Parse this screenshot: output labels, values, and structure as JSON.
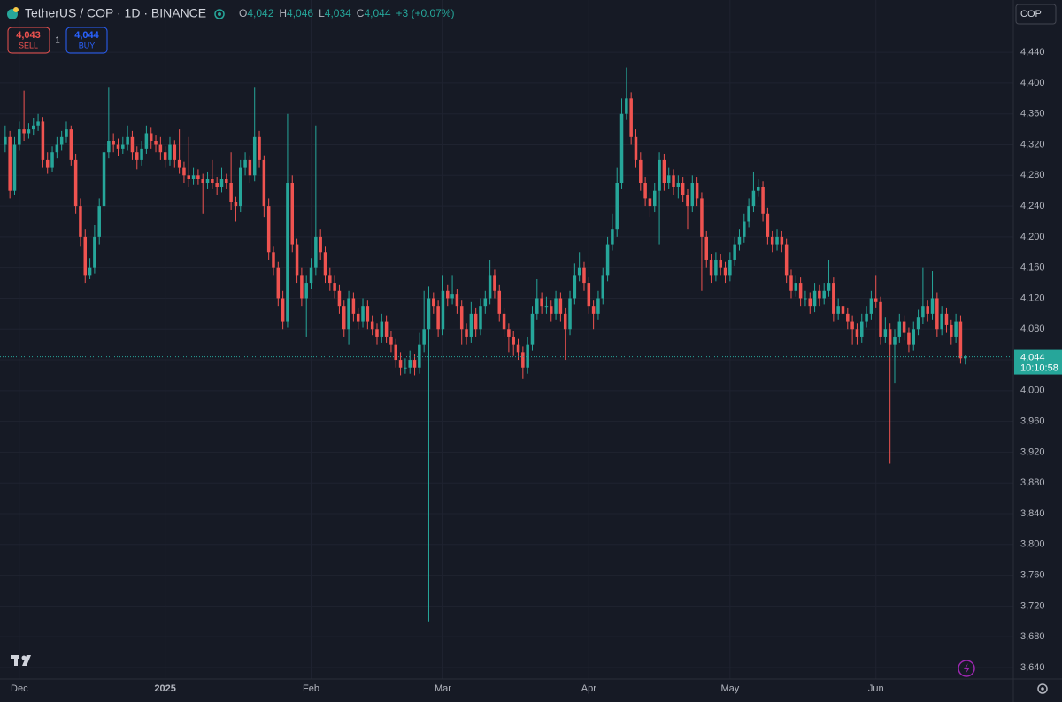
{
  "header": {
    "symbol": "TetherUS / COP · 1D · BINANCE",
    "ohlc": [
      {
        "label": "O",
        "value": "4,042"
      },
      {
        "label": "H",
        "value": "4,046"
      },
      {
        "label": "L",
        "value": "4,034"
      },
      {
        "label": "C",
        "value": "4,044"
      }
    ],
    "change": "+3 (+0.07%)",
    "sell_price": "4,043",
    "sell_label": "SELL",
    "quantity": "1",
    "buy_price": "4,044",
    "buy_label": "BUY",
    "currency": "COP"
  },
  "chart_data": {
    "type": "candlestick",
    "up_color": "#26a69a",
    "down_color": "#ef5350",
    "grid": true,
    "xlim": [
      -1.1,
      214.2
    ],
    "xticks": [
      {
        "value": 3,
        "label": "Dec"
      },
      {
        "value": 34,
        "label": "2025"
      },
      {
        "value": 65,
        "label": "Feb"
      },
      {
        "value": 93,
        "label": "Mar"
      },
      {
        "value": 124,
        "label": "Apr"
      },
      {
        "value": 154,
        "label": "May"
      },
      {
        "value": 185,
        "label": "Jun"
      }
    ],
    "ylim": [
      3625,
      4508
    ],
    "yticks": [
      {
        "value": 3640,
        "label": "3,640"
      },
      {
        "value": 3680,
        "label": "3,680"
      },
      {
        "value": 3720,
        "label": "3,720"
      },
      {
        "value": 3760,
        "label": "3,760"
      },
      {
        "value": 3800,
        "label": "3,800"
      },
      {
        "value": 3840,
        "label": "3,840"
      },
      {
        "value": 3880,
        "label": "3,880"
      },
      {
        "value": 3920,
        "label": "3,920"
      },
      {
        "value": 3960,
        "label": "3,960"
      },
      {
        "value": 4000,
        "label": "4,000"
      },
      {
        "value": 4040,
        "label": "4,040"
      },
      {
        "value": 4080,
        "label": "4,080"
      },
      {
        "value": 4120,
        "label": "4,120"
      },
      {
        "value": 4160,
        "label": "4,160"
      },
      {
        "value": 4200,
        "label": "4,200"
      },
      {
        "value": 4240,
        "label": "4,240"
      },
      {
        "value": 4280,
        "label": "4,280"
      },
      {
        "value": 4320,
        "label": "4,320"
      },
      {
        "value": 4360,
        "label": "4,360"
      },
      {
        "value": 4400,
        "label": "4,400"
      },
      {
        "value": 4440,
        "label": "4,440"
      }
    ],
    "last_price": {
      "value": 4044,
      "label": "4,044"
    },
    "countdown": "10:10:58",
    "candles": [
      [
        4320,
        4345,
        4310,
        4330
      ],
      [
        4330,
        4338,
        4250,
        4260
      ],
      [
        4260,
        4330,
        4255,
        4320
      ],
      [
        4320,
        4350,
        4312,
        4340
      ],
      [
        4340,
        4390,
        4325,
        4335
      ],
      [
        4335,
        4348,
        4328,
        4340
      ],
      [
        4340,
        4355,
        4332,
        4345
      ],
      [
        4345,
        4360,
        4338,
        4350
      ],
      [
        4350,
        4356,
        4290,
        4300
      ],
      [
        4300,
        4310,
        4282,
        4290
      ],
      [
        4290,
        4318,
        4285,
        4310
      ],
      [
        4310,
        4330,
        4302,
        4320
      ],
      [
        4320,
        4338,
        4312,
        4330
      ],
      [
        4330,
        4350,
        4322,
        4340
      ],
      [
        4340,
        4345,
        4292,
        4300
      ],
      [
        4300,
        4308,
        4230,
        4240
      ],
      [
        4240,
        4250,
        4188,
        4200
      ],
      [
        4200,
        4210,
        4140,
        4150
      ],
      [
        4150,
        4172,
        4145,
        4160
      ],
      [
        4160,
        4215,
        4152,
        4200
      ],
      [
        4200,
        4250,
        4190,
        4240
      ],
      [
        4240,
        4320,
        4232,
        4310
      ],
      [
        4310,
        4395,
        4302,
        4325
      ],
      [
        4325,
        4335,
        4310,
        4320
      ],
      [
        4320,
        4328,
        4305,
        4315
      ],
      [
        4315,
        4330,
        4308,
        4320
      ],
      [
        4320,
        4345,
        4312,
        4330
      ],
      [
        4330,
        4338,
        4300,
        4310
      ],
      [
        4310,
        4318,
        4288,
        4300
      ],
      [
        4300,
        4325,
        4292,
        4315
      ],
      [
        4315,
        4345,
        4308,
        4335
      ],
      [
        4335,
        4342,
        4315,
        4325
      ],
      [
        4325,
        4332,
        4310,
        4320
      ],
      [
        4320,
        4330,
        4300,
        4310
      ],
      [
        4310,
        4318,
        4290,
        4300
      ],
      [
        4300,
        4330,
        4292,
        4320
      ],
      [
        4320,
        4326,
        4290,
        4300
      ],
      [
        4300,
        4340,
        4282,
        4290
      ],
      [
        4290,
        4298,
        4270,
        4280
      ],
      [
        4280,
        4330,
        4265,
        4275
      ],
      [
        4275,
        4290,
        4268,
        4280
      ],
      [
        4280,
        4288,
        4268,
        4275
      ],
      [
        4275,
        4282,
        4230,
        4270
      ],
      [
        4270,
        4285,
        4262,
        4275
      ],
      [
        4275,
        4300,
        4262,
        4270
      ],
      [
        4270,
        4278,
        4255,
        4265
      ],
      [
        4265,
        4290,
        4258,
        4275
      ],
      [
        4275,
        4282,
        4262,
        4270
      ],
      [
        4270,
        4310,
        4235,
        4245
      ],
      [
        4245,
        4252,
        4220,
        4240
      ],
      [
        4240,
        4300,
        4232,
        4290
      ],
      [
        4290,
        4310,
        4280,
        4300
      ],
      [
        4300,
        4306,
        4270,
        4280
      ],
      [
        4280,
        4395,
        4272,
        4330
      ],
      [
        4330,
        4338,
        4290,
        4300
      ],
      [
        4300,
        4306,
        4225,
        4240
      ],
      [
        4240,
        4250,
        4170,
        4180
      ],
      [
        4180,
        4188,
        4150,
        4160
      ],
      [
        4160,
        4168,
        4110,
        4120
      ],
      [
        4120,
        4130,
        4080,
        4090
      ],
      [
        4090,
        4360,
        4082,
        4270
      ],
      [
        4270,
        4280,
        4180,
        4190
      ],
      [
        4190,
        4198,
        4140,
        4150
      ],
      [
        4150,
        4160,
        4110,
        4120
      ],
      [
        4120,
        4150,
        4070,
        4140
      ],
      [
        4140,
        4172,
        4132,
        4160
      ],
      [
        4160,
        4345,
        4150,
        4200
      ],
      [
        4200,
        4210,
        4170,
        4180
      ],
      [
        4180,
        4188,
        4140,
        4150
      ],
      [
        4150,
        4160,
        4130,
        4140
      ],
      [
        4140,
        4150,
        4120,
        4130
      ],
      [
        4130,
        4138,
        4100,
        4110
      ],
      [
        4110,
        4118,
        4070,
        4080
      ],
      [
        4080,
        4130,
        4060,
        4120
      ],
      [
        4120,
        4128,
        4090,
        4100
      ],
      [
        4100,
        4108,
        4080,
        4090
      ],
      [
        4090,
        4120,
        4082,
        4110
      ],
      [
        4110,
        4118,
        4080,
        4090
      ],
      [
        4090,
        4098,
        4072,
        4080
      ],
      [
        4080,
        4088,
        4060,
        4070
      ],
      [
        4070,
        4100,
        4062,
        4090
      ],
      [
        4090,
        4098,
        4062,
        4070
      ],
      [
        4070,
        4078,
        4050,
        4060
      ],
      [
        4060,
        4068,
        4030,
        4040
      ],
      [
        4040,
        4050,
        4020,
        4030
      ],
      [
        4030,
        4042,
        4022,
        4030
      ],
      [
        4030,
        4052,
        4022,
        4040
      ],
      [
        4040,
        4048,
        4020,
        4030
      ],
      [
        4030,
        4075,
        4022,
        4060
      ],
      [
        4060,
        4130,
        4050,
        4080
      ],
      [
        4080,
        4135,
        3700,
        4120
      ],
      [
        4120,
        4128,
        4100,
        4110
      ],
      [
        4110,
        4118,
        4070,
        4080
      ],
      [
        4080,
        4150,
        4072,
        4130
      ],
      [
        4130,
        4138,
        4110,
        4120
      ],
      [
        4120,
        4150,
        4112,
        4125
      ],
      [
        4125,
        4132,
        4100,
        4110
      ],
      [
        4110,
        4118,
        4060,
        4080
      ],
      [
        4080,
        4088,
        4060,
        4070
      ],
      [
        4070,
        4115,
        4062,
        4100
      ],
      [
        4100,
        4108,
        4070,
        4080
      ],
      [
        4080,
        4120,
        4072,
        4110
      ],
      [
        4110,
        4130,
        4100,
        4120
      ],
      [
        4120,
        4170,
        4112,
        4150
      ],
      [
        4150,
        4158,
        4120,
        4130
      ],
      [
        4130,
        4138,
        4090,
        4100
      ],
      [
        4100,
        4108,
        4070,
        4080
      ],
      [
        4080,
        4088,
        4050,
        4070
      ],
      [
        4070,
        4078,
        4045,
        4060
      ],
      [
        4060,
        4068,
        4040,
        4050
      ],
      [
        4050,
        4058,
        4015,
        4030
      ],
      [
        4030,
        4070,
        4022,
        4060
      ],
      [
        4060,
        4110,
        4052,
        4100
      ],
      [
        4100,
        4145,
        4092,
        4120
      ],
      [
        4120,
        4128,
        4100,
        4110
      ],
      [
        4110,
        4122,
        4100,
        4110
      ],
      [
        4110,
        4118,
        4090,
        4100
      ],
      [
        4100,
        4130,
        4092,
        4120
      ],
      [
        4120,
        4128,
        4090,
        4100
      ],
      [
        4100,
        4108,
        4040,
        4080
      ],
      [
        4080,
        4130,
        4072,
        4120
      ],
      [
        4120,
        4165,
        4112,
        4150
      ],
      [
        4150,
        4180,
        4142,
        4160
      ],
      [
        4160,
        4168,
        4130,
        4140
      ],
      [
        4140,
        4148,
        4100,
        4110
      ],
      [
        4110,
        4118,
        4080,
        4100
      ],
      [
        4100,
        4130,
        4092,
        4120
      ],
      [
        4120,
        4160,
        4112,
        4150
      ],
      [
        4150,
        4200,
        4142,
        4190
      ],
      [
        4190,
        4230,
        4182,
        4210
      ],
      [
        4210,
        4290,
        4200,
        4270
      ],
      [
        4270,
        4380,
        4262,
        4360
      ],
      [
        4360,
        4420,
        4352,
        4380
      ],
      [
        4380,
        4388,
        4320,
        4330
      ],
      [
        4330,
        4340,
        4290,
        4300
      ],
      [
        4300,
        4310,
        4260,
        4270
      ],
      [
        4270,
        4278,
        4240,
        4250
      ],
      [
        4250,
        4258,
        4225,
        4240
      ],
      [
        4240,
        4270,
        4232,
        4260
      ],
      [
        4260,
        4310,
        4190,
        4300
      ],
      [
        4300,
        4308,
        4260,
        4270
      ],
      [
        4270,
        4290,
        4262,
        4280
      ],
      [
        4280,
        4288,
        4255,
        4265
      ],
      [
        4265,
        4280,
        4250,
        4270
      ],
      [
        4270,
        4278,
        4245,
        4255
      ],
      [
        4255,
        4262,
        4210,
        4240
      ],
      [
        4240,
        4280,
        4232,
        4270
      ],
      [
        4270,
        4278,
        4240,
        4250
      ],
      [
        4250,
        4258,
        4130,
        4200
      ],
      [
        4200,
        4208,
        4160,
        4170
      ],
      [
        4170,
        4178,
        4140,
        4150
      ],
      [
        4150,
        4180,
        4142,
        4170
      ],
      [
        4170,
        4178,
        4150,
        4160
      ],
      [
        4160,
        4168,
        4140,
        4150
      ],
      [
        4150,
        4180,
        4142,
        4170
      ],
      [
        4170,
        4200,
        4162,
        4190
      ],
      [
        4190,
        4210,
        4182,
        4200
      ],
      [
        4200,
        4230,
        4192,
        4220
      ],
      [
        4220,
        4250,
        4212,
        4240
      ],
      [
        4240,
        4285,
        4232,
        4260
      ],
      [
        4260,
        4275,
        4252,
        4265
      ],
      [
        4265,
        4272,
        4220,
        4230
      ],
      [
        4230,
        4238,
        4190,
        4200
      ],
      [
        4200,
        4208,
        4180,
        4190
      ],
      [
        4190,
        4210,
        4182,
        4200
      ],
      [
        4200,
        4208,
        4180,
        4190
      ],
      [
        4190,
        4198,
        4140,
        4150
      ],
      [
        4150,
        4158,
        4120,
        4130
      ],
      [
        4130,
        4150,
        4122,
        4140
      ],
      [
        4140,
        4148,
        4110,
        4120
      ],
      [
        4120,
        4130,
        4110,
        4120
      ],
      [
        4120,
        4128,
        4100,
        4110
      ],
      [
        4110,
        4140,
        4102,
        4130
      ],
      [
        4130,
        4138,
        4110,
        4120
      ],
      [
        4120,
        4140,
        4112,
        4130
      ],
      [
        4130,
        4170,
        4122,
        4140
      ],
      [
        4140,
        4148,
        4090,
        4100
      ],
      [
        4100,
        4120,
        4092,
        4110
      ],
      [
        4110,
        4118,
        4090,
        4100
      ],
      [
        4100,
        4108,
        4080,
        4090
      ],
      [
        4090,
        4098,
        4060,
        4080
      ],
      [
        4080,
        4088,
        4060,
        4070
      ],
      [
        4070,
        4100,
        4062,
        4090
      ],
      [
        4090,
        4110,
        4082,
        4100
      ],
      [
        4100,
        4130,
        4092,
        4120
      ],
      [
        4120,
        4150,
        4108,
        4115
      ],
      [
        4115,
        4122,
        4060,
        4070
      ],
      [
        4070,
        4095,
        4062,
        4080
      ],
      [
        4080,
        4088,
        3905,
        4060
      ],
      [
        4060,
        4080,
        4010,
        4070
      ],
      [
        4070,
        4100,
        4062,
        4090
      ],
      [
        4090,
        4098,
        4065,
        4075
      ],
      [
        4075,
        4082,
        4050,
        4060
      ],
      [
        4060,
        4090,
        4052,
        4080
      ],
      [
        4080,
        4105,
        4072,
        4095
      ],
      [
        4095,
        4160,
        4087,
        4110
      ],
      [
        4110,
        4118,
        4090,
        4100
      ],
      [
        4100,
        4155,
        4092,
        4120
      ],
      [
        4120,
        4128,
        4070,
        4080
      ],
      [
        4080,
        4110,
        4072,
        4100
      ],
      [
        4100,
        4108,
        4075,
        4085
      ],
      [
        4085,
        4092,
        4060,
        4070
      ],
      [
        4070,
        4100,
        4062,
        4090
      ],
      [
        4090,
        4098,
        4035,
        4042
      ],
      [
        4042,
        4046,
        4034,
        4044
      ]
    ]
  }
}
